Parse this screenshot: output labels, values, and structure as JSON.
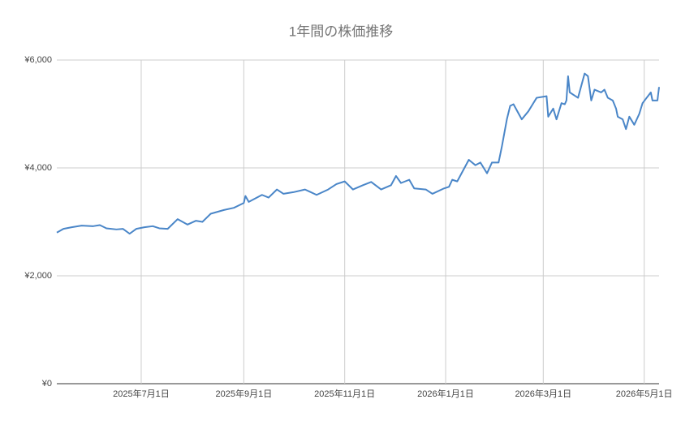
{
  "chart_data": {
    "type": "line",
    "title": "1年間の株価推移",
    "x": [
      "2025-05-11",
      "2025-05-15",
      "2025-05-20",
      "2025-05-26",
      "2025-06-02",
      "2025-06-06",
      "2025-06-10",
      "2025-06-16",
      "2025-06-20",
      "2025-06-24",
      "2025-06-28",
      "2025-07-03",
      "2025-07-08",
      "2025-07-12",
      "2025-07-17",
      "2025-07-23",
      "2025-07-29",
      "2025-08-03",
      "2025-08-07",
      "2025-08-12",
      "2025-08-20",
      "2025-08-26",
      "2025-09-01",
      "2025-09-02",
      "2025-09-04",
      "2025-09-12",
      "2025-09-16",
      "2025-09-21",
      "2025-09-25",
      "2025-10-01",
      "2025-10-08",
      "2025-10-15",
      "2025-10-22",
      "2025-10-27",
      "2025-11-01",
      "2025-11-06",
      "2025-11-12",
      "2025-11-17",
      "2025-11-23",
      "2025-11-29",
      "2025-12-02",
      "2025-12-05",
      "2025-12-10",
      "2025-12-13",
      "2025-12-20",
      "2025-12-24",
      "2025-12-31",
      "2026-01-03",
      "2026-01-05",
      "2026-01-08",
      "2026-01-15",
      "2026-01-19",
      "2026-01-22",
      "2026-01-26",
      "2026-01-29",
      "2026-02-02",
      "2026-02-04",
      "2026-02-07",
      "2026-02-09",
      "2026-02-11",
      "2026-02-16",
      "2026-02-20",
      "2026-02-25",
      "2026-03-01",
      "2026-03-03",
      "2026-03-04",
      "2026-03-07",
      "2026-03-09",
      "2026-03-12",
      "2026-03-14",
      "2026-03-15",
      "2026-03-16",
      "2026-03-17",
      "2026-03-22",
      "2026-03-26",
      "2026-03-28",
      "2026-03-30",
      "2026-04-01",
      "2026-04-05",
      "2026-04-07",
      "2026-04-09",
      "2026-04-12",
      "2026-04-14",
      "2026-04-15",
      "2026-04-18",
      "2026-04-20",
      "2026-04-22",
      "2026-04-25",
      "2026-04-28",
      "2026-04-30",
      "2026-05-05",
      "2026-05-06",
      "2026-05-09",
      "2026-05-10"
    ],
    "values": [
      2800,
      2870,
      2900,
      2930,
      2920,
      2940,
      2880,
      2860,
      2870,
      2780,
      2870,
      2900,
      2920,
      2880,
      2870,
      3050,
      2950,
      3020,
      3000,
      3150,
      3220,
      3260,
      3350,
      3480,
      3370,
      3500,
      3450,
      3600,
      3520,
      3550,
      3600,
      3500,
      3600,
      3700,
      3750,
      3600,
      3680,
      3740,
      3600,
      3680,
      3850,
      3720,
      3780,
      3620,
      3600,
      3520,
      3620,
      3650,
      3780,
      3750,
      4150,
      4050,
      4100,
      3900,
      4100,
      4100,
      4400,
      4900,
      5150,
      5180,
      4900,
      5050,
      5300,
      5320,
      5330,
      4950,
      5100,
      4900,
      5200,
      5180,
      5250,
      5700,
      5400,
      5300,
      5750,
      5700,
      5250,
      5450,
      5400,
      5450,
      5300,
      5250,
      5100,
      4950,
      4900,
      4720,
      4950,
      4800,
      5000,
      5200,
      5400,
      5250,
      5250,
      5500
    ],
    "color": "#4a86c8",
    "xlim": [
      "2025-05-11",
      "2026-05-10"
    ],
    "xticks": [
      {
        "value": "2025-07-01",
        "label": "2025年7月1日"
      },
      {
        "value": "2025-09-01",
        "label": "2025年9月1日"
      },
      {
        "value": "2025-11-01",
        "label": "2025年11月1日"
      },
      {
        "value": "2026-01-01",
        "label": "2026年1月1日"
      },
      {
        "value": "2026-03-01",
        "label": "2026年3月1日"
      },
      {
        "value": "2026-05-01",
        "label": "2026年5月1日"
      }
    ],
    "ylim": [
      0,
      6000
    ],
    "yticks": [
      {
        "value": 0,
        "label": "¥0"
      },
      {
        "value": 2000,
        "label": "¥2,000"
      },
      {
        "value": 4000,
        "label": "¥4,000"
      },
      {
        "value": 6000,
        "label": "¥6,000"
      }
    ],
    "grid": true
  }
}
